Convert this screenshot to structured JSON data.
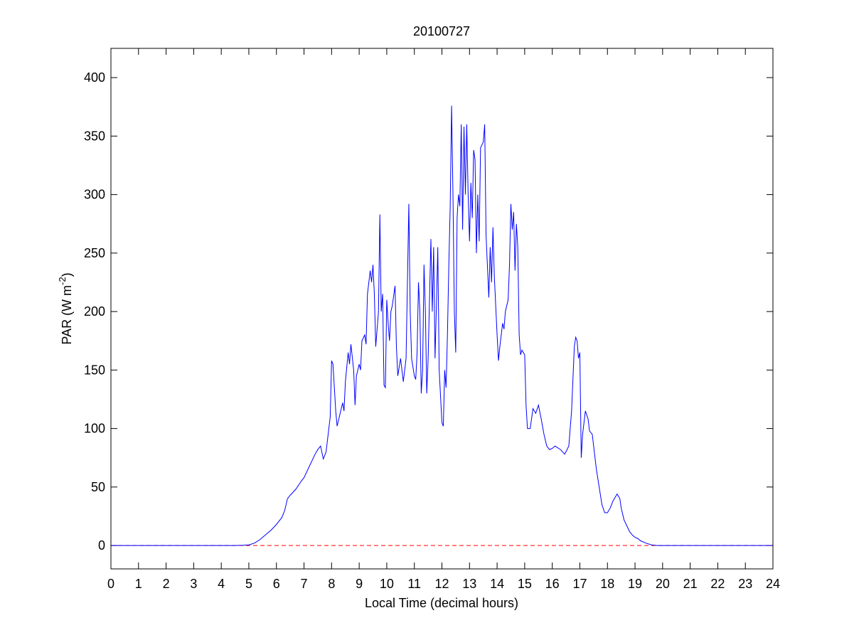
{
  "chart_data": {
    "type": "line",
    "title": "20100727",
    "xlabel": "Local Time (decimal hours)",
    "ylabel": {
      "text": "PAR (W m",
      "superscript": "-2",
      "suffix": ")"
    },
    "x": [
      0,
      4.5,
      4.8,
      5.0,
      5.2,
      5.4,
      5.6,
      5.8,
      6.0,
      6.2,
      6.3,
      6.4,
      6.5,
      6.7,
      6.9,
      7.0,
      7.2,
      7.4,
      7.5,
      7.6,
      7.7,
      7.8,
      7.85,
      7.95,
      8.0,
      8.05,
      8.15,
      8.2,
      8.3,
      8.4,
      8.45,
      8.5,
      8.6,
      8.65,
      8.7,
      8.8,
      8.85,
      8.9,
      9.0,
      9.05,
      9.1,
      9.2,
      9.25,
      9.3,
      9.4,
      9.45,
      9.5,
      9.55,
      9.6,
      9.7,
      9.75,
      9.8,
      9.85,
      9.9,
      9.95,
      10.0,
      10.05,
      10.1,
      10.15,
      10.2,
      10.3,
      10.35,
      10.4,
      10.5,
      10.55,
      10.6,
      10.7,
      10.8,
      10.85,
      10.9,
      11.0,
      11.05,
      11.1,
      11.15,
      11.2,
      11.25,
      11.3,
      11.35,
      11.4,
      11.45,
      11.5,
      11.6,
      11.65,
      11.7,
      11.75,
      11.8,
      11.85,
      11.9,
      12.0,
      12.05,
      12.1,
      12.15,
      12.2,
      12.25,
      12.3,
      12.35,
      12.4,
      12.45,
      12.5,
      12.55,
      12.6,
      12.65,
      12.7,
      12.75,
      12.8,
      12.85,
      12.9,
      12.95,
      13.0,
      13.05,
      13.1,
      13.15,
      13.2,
      13.25,
      13.3,
      13.35,
      13.4,
      13.5,
      13.55,
      13.6,
      13.7,
      13.75,
      13.8,
      13.85,
      13.9,
      14.0,
      14.05,
      14.1,
      14.2,
      14.25,
      14.3,
      14.4,
      14.45,
      14.5,
      14.55,
      14.6,
      14.65,
      14.7,
      14.75,
      14.8,
      14.85,
      14.9,
      15.0,
      15.05,
      15.1,
      15.2,
      15.3,
      15.4,
      15.5,
      15.6,
      15.7,
      15.8,
      15.9,
      16.0,
      16.1,
      16.3,
      16.45,
      16.6,
      16.7,
      16.8,
      16.85,
      16.9,
      16.95,
      17.0,
      17.05,
      17.1,
      17.2,
      17.3,
      17.35,
      17.45,
      17.5,
      17.6,
      17.7,
      17.8,
      17.9,
      18.0,
      18.1,
      18.2,
      18.35,
      18.45,
      18.5,
      18.6,
      18.7,
      18.8,
      18.9,
      19.0,
      19.1,
      19.2,
      19.4,
      19.6,
      19.8,
      24
    ],
    "series": [
      {
        "color": "#0000ff",
        "values": [
          0,
          0,
          0.2,
          0.5,
          2,
          5,
          9,
          13,
          18,
          24,
          30,
          40,
          43,
          48,
          55,
          58,
          68,
          78,
          82,
          85,
          74,
          80,
          90,
          110,
          158,
          155,
          115,
          102,
          112,
          122,
          115,
          140,
          165,
          155,
          172,
          150,
          120,
          145,
          155,
          150,
          175,
          180,
          172,
          215,
          235,
          225,
          240,
          215,
          170,
          200,
          283,
          200,
          215,
          137,
          135,
          210,
          190,
          175,
          200,
          205,
          222,
          170,
          145,
          160,
          150,
          140,
          160,
          292,
          200,
          160,
          145,
          142,
          165,
          225,
          200,
          130,
          150,
          240,
          200,
          130,
          160,
          262,
          200,
          255,
          160,
          205,
          255,
          150,
          105,
          102,
          150,
          135,
          180,
          240,
          290,
          376,
          300,
          200,
          165,
          280,
          300,
          290,
          360,
          270,
          358,
          300,
          360,
          300,
          260,
          310,
          280,
          338,
          330,
          250,
          300,
          260,
          340,
          345,
          360,
          265,
          212,
          255,
          225,
          272,
          230,
          180,
          158,
          170,
          190,
          185,
          200,
          210,
          240,
          292,
          270,
          285,
          235,
          275,
          255,
          180,
          163,
          167,
          163,
          120,
          100,
          100,
          117,
          113,
          120,
          108,
          95,
          85,
          82,
          83,
          85,
          82,
          78,
          85,
          115,
          170,
          178,
          175,
          160,
          165,
          75,
          95,
          115,
          108,
          98,
          95,
          85,
          65,
          50,
          35,
          28,
          28,
          32,
          38,
          44,
          40,
          32,
          22,
          17,
          12,
          9,
          7,
          6,
          4,
          2,
          0.5,
          0,
          0
        ]
      }
    ],
    "reference_line": {
      "y": 0,
      "color": "#ff0000",
      "style": "dashed"
    },
    "xlim": [
      0,
      24
    ],
    "xticks": [
      0,
      1,
      2,
      3,
      4,
      5,
      6,
      7,
      8,
      9,
      10,
      11,
      12,
      13,
      14,
      15,
      16,
      17,
      18,
      19,
      20,
      21,
      22,
      23,
      24
    ],
    "ylim": [
      -20,
      425
    ],
    "yticks": [
      0,
      50,
      100,
      150,
      200,
      250,
      300,
      350,
      400
    ],
    "grid": false
  }
}
